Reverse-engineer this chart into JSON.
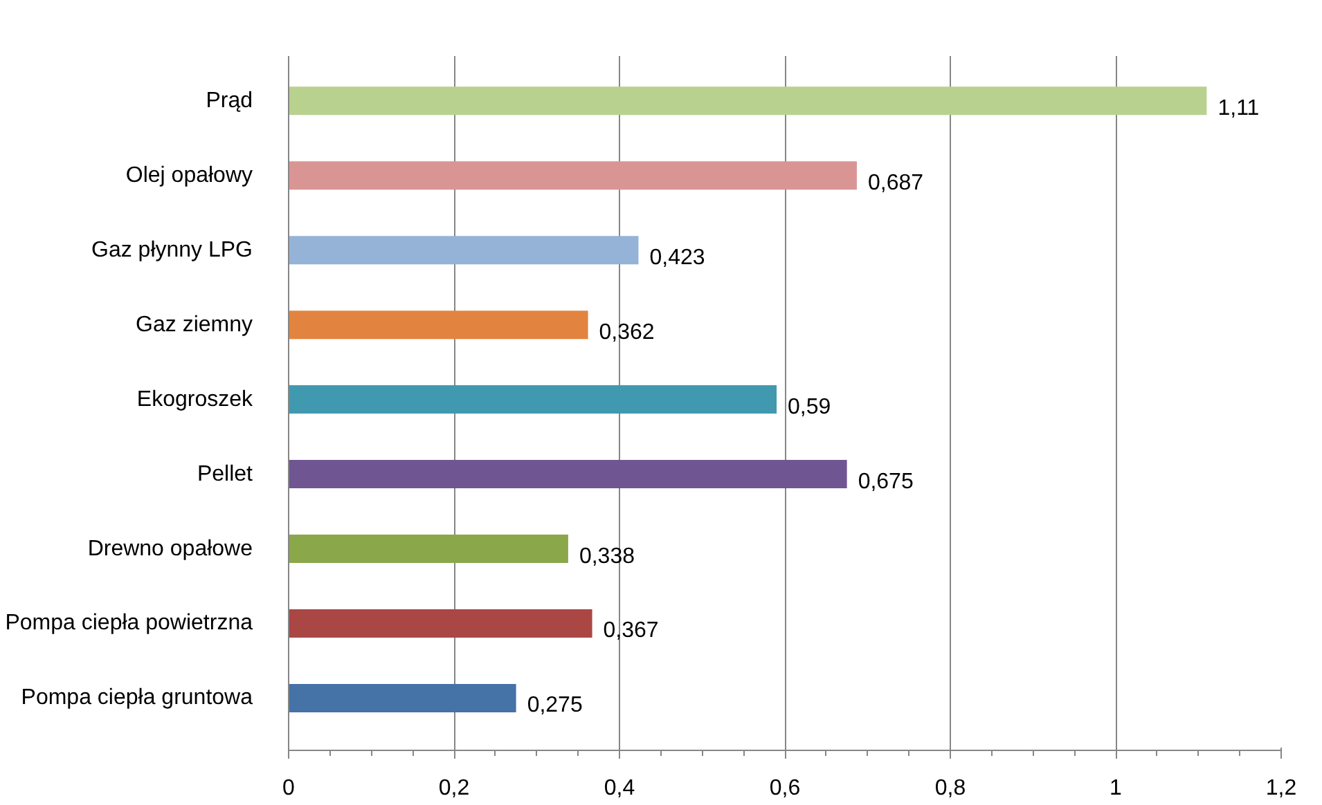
{
  "chart_data": {
    "type": "bar",
    "orientation": "horizontal",
    "categories": [
      "Prąd",
      "Olej opałowy",
      "Gaz płynny LPG",
      "Gaz ziemny",
      "Ekogroszek",
      "Pellet",
      "Drewno opałowe",
      "Pompa ciepła powietrzna",
      "Pompa ciepła gruntowa"
    ],
    "values": [
      1.11,
      0.687,
      0.423,
      0.362,
      0.59,
      0.675,
      0.338,
      0.367,
      0.275
    ],
    "value_labels": [
      "1,11",
      "0,687",
      "0,423",
      "0,362",
      "0,59",
      "0,675",
      "0,338",
      "0,367",
      "0,275"
    ],
    "colors": [
      "#b9d18f",
      "#d99594",
      "#95b3d7",
      "#e2843f",
      "#4199b0",
      "#6f5592",
      "#8aa74a",
      "#aa4643",
      "#4572a7"
    ],
    "xlim": [
      0,
      1.2
    ],
    "xticks": [
      0,
      {
        "value": 0.2,
        "label": "0,2"
      },
      {
        "value": 0.4,
        "label": "0,4"
      },
      {
        "value": 0.6,
        "label": "0,6"
      },
      {
        "value": 0.8,
        "label": "0,8"
      },
      1,
      {
        "value": 1.2,
        "label": "1,2"
      }
    ],
    "grid": "x"
  }
}
